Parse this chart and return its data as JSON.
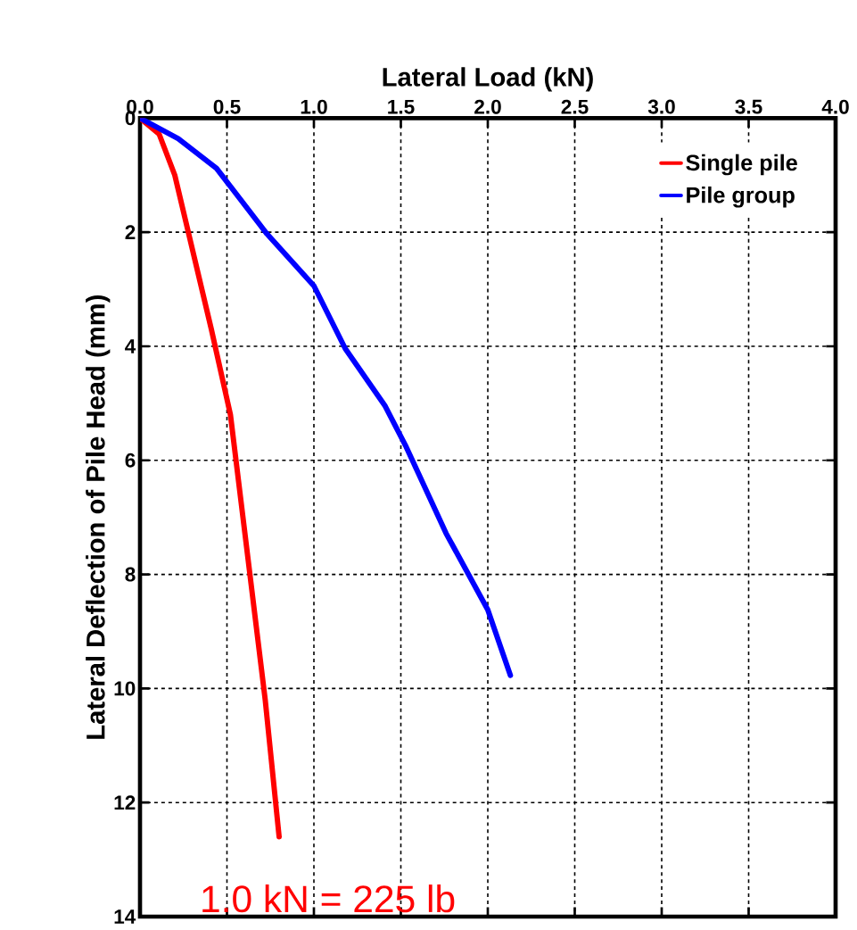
{
  "chart_data": {
    "type": "line",
    "xlabel": "Lateral Load (kN)",
    "ylabel": "Lateral Deflection of Pile Head (mm)",
    "xlim": [
      0,
      4
    ],
    "xticks": [
      {
        "value": 0,
        "label": "0.0"
      },
      {
        "value": 0.5,
        "label": "0.5"
      },
      {
        "value": 1,
        "label": "1.0"
      },
      {
        "value": 1.5,
        "label": "1.5"
      },
      {
        "value": 2,
        "label": "2.0"
      },
      {
        "value": 2.5,
        "label": "2.5"
      },
      {
        "value": 3,
        "label": "3.0"
      },
      {
        "value": 3.5,
        "label": "3.5"
      },
      {
        "value": 4,
        "label": "4.0"
      }
    ],
    "ylim": [
      14,
      0
    ],
    "yticks": [
      0,
      2,
      4,
      6,
      8,
      10,
      12,
      14
    ],
    "grid": true,
    "legend": "top right",
    "marker": "none",
    "line_style": "solid",
    "annotations": [
      "1.0 kN = 225 lb"
    ],
    "series": [
      {
        "name": "Single pile",
        "color": "#ff0000",
        "x": [
          0,
          0.11,
          0.2,
          0.41,
          0.52,
          0.62,
          0.72,
          0.8
        ],
        "values": [
          0,
          0.28,
          1.0,
          3.7,
          5.2,
          7.7,
          10.2,
          12.6
        ]
      },
      {
        "name": "Pile group",
        "color": "#0000ff",
        "x": [
          0,
          0.22,
          0.44,
          0.73,
          1.0,
          1.18,
          1.41,
          1.53,
          1.76,
          2.0,
          2.13
        ],
        "values": [
          0,
          0.36,
          0.88,
          2.03,
          2.94,
          4.04,
          5.05,
          5.76,
          7.28,
          8.62,
          9.77
        ]
      }
    ]
  }
}
